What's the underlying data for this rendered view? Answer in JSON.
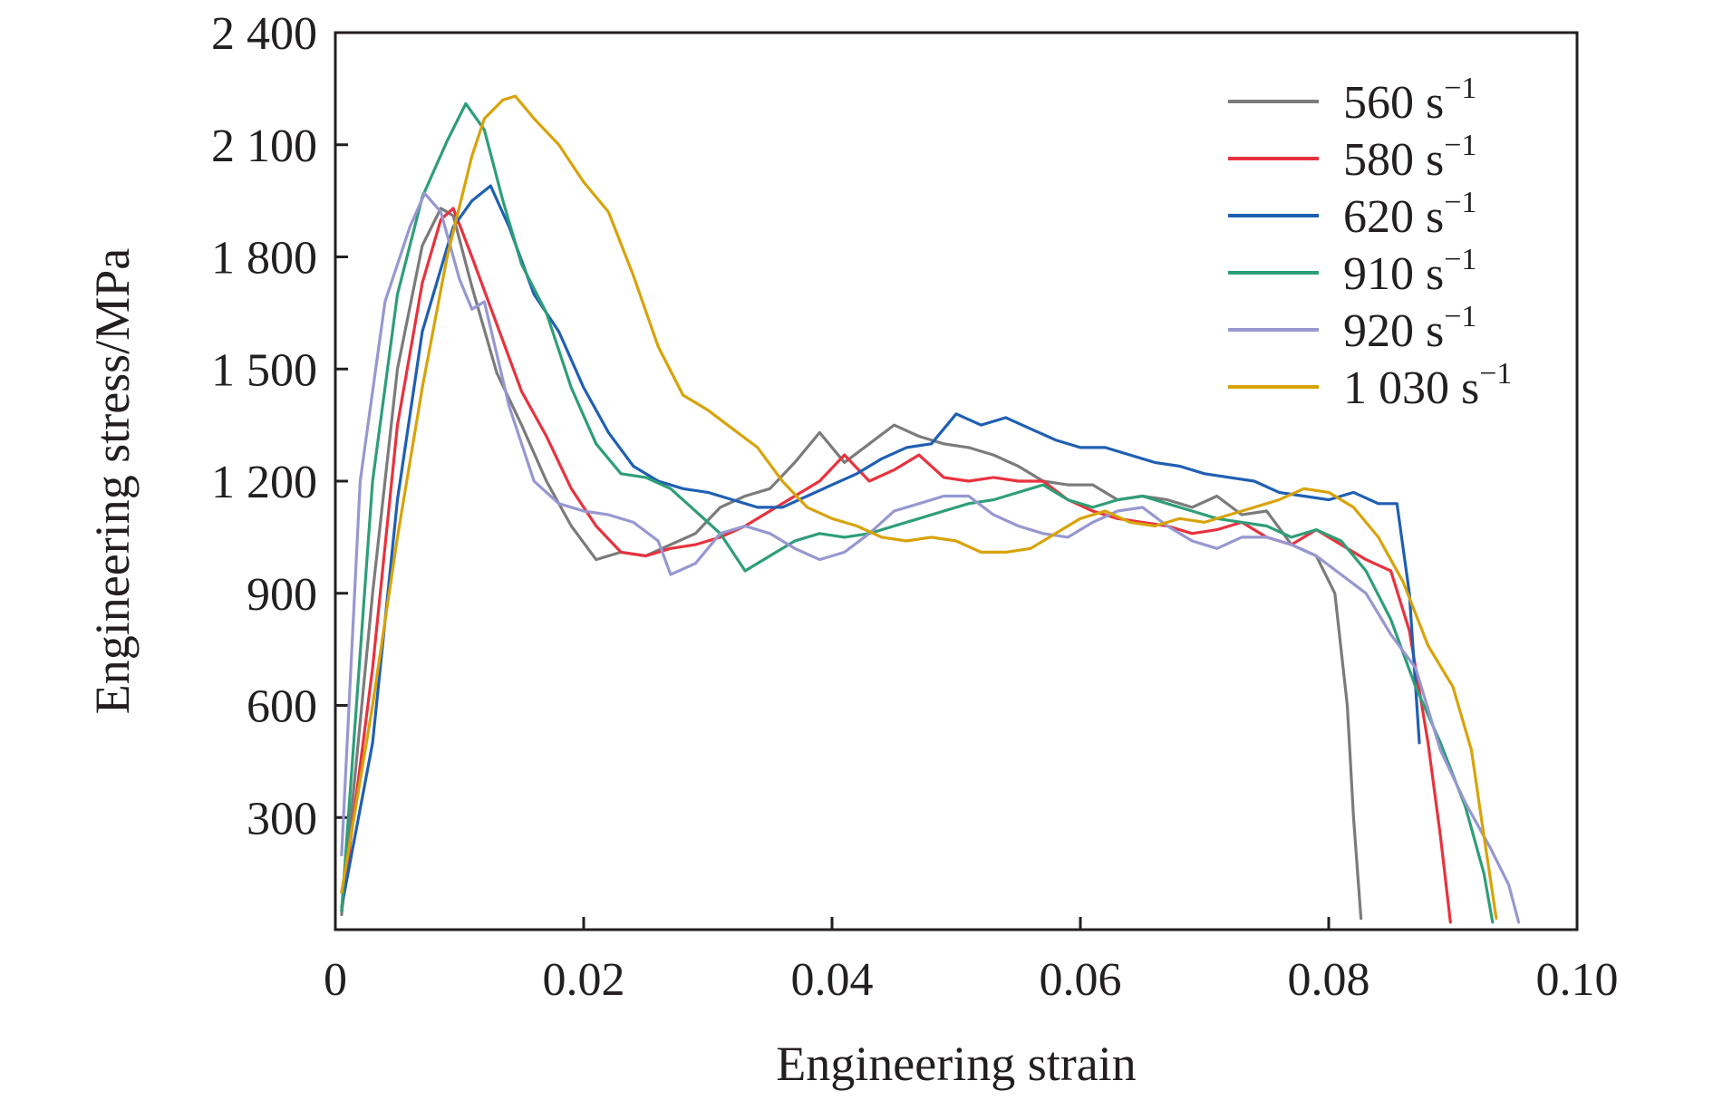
{
  "chart_data": {
    "type": "line",
    "xlabel": "Engineering strain",
    "ylabel": "Engineering stress/MPa",
    "xlim": [
      0,
      0.1
    ],
    "ylim": [
      0,
      2400
    ],
    "x_ticks": [
      {
        "value": 0,
        "label": "0"
      },
      {
        "value": 0.02,
        "label": "0.02"
      },
      {
        "value": 0.04,
        "label": "0.04"
      },
      {
        "value": 0.06,
        "label": "0.06"
      },
      {
        "value": 0.08,
        "label": "0.08"
      },
      {
        "value": 0.1,
        "label": "0.10"
      }
    ],
    "y_ticks": [
      {
        "value": 300,
        "label": "300"
      },
      {
        "value": 600,
        "label": "600"
      },
      {
        "value": 900,
        "label": "900"
      },
      {
        "value": 1200,
        "label": "1 200"
      },
      {
        "value": 1500,
        "label": "1 500"
      },
      {
        "value": 1800,
        "label": "1 800"
      },
      {
        "value": 2100,
        "label": "2 100"
      },
      {
        "value": 2400,
        "label": "2 400"
      }
    ],
    "grid": false,
    "legend_position": "top-right",
    "series": [
      {
        "name": "560 s",
        "superscript": "−1",
        "color": "#7b7b7b",
        "points": [
          [
            0.0005,
            40
          ],
          [
            0.003,
            900
          ],
          [
            0.005,
            1500
          ],
          [
            0.007,
            1830
          ],
          [
            0.0085,
            1930
          ],
          [
            0.0095,
            1910
          ],
          [
            0.011,
            1720
          ],
          [
            0.013,
            1490
          ],
          [
            0.015,
            1350
          ],
          [
            0.017,
            1200
          ],
          [
            0.019,
            1080
          ],
          [
            0.021,
            990
          ],
          [
            0.023,
            1010
          ],
          [
            0.025,
            1000
          ],
          [
            0.027,
            1030
          ],
          [
            0.029,
            1060
          ],
          [
            0.031,
            1130
          ],
          [
            0.033,
            1160
          ],
          [
            0.035,
            1180
          ],
          [
            0.037,
            1250
          ],
          [
            0.039,
            1330
          ],
          [
            0.041,
            1250
          ],
          [
            0.043,
            1300
          ],
          [
            0.045,
            1350
          ],
          [
            0.047,
            1320
          ],
          [
            0.049,
            1300
          ],
          [
            0.051,
            1290
          ],
          [
            0.053,
            1270
          ],
          [
            0.055,
            1240
          ],
          [
            0.057,
            1200
          ],
          [
            0.059,
            1190
          ],
          [
            0.061,
            1190
          ],
          [
            0.063,
            1150
          ],
          [
            0.065,
            1160
          ],
          [
            0.067,
            1150
          ],
          [
            0.069,
            1130
          ],
          [
            0.071,
            1160
          ],
          [
            0.073,
            1110
          ],
          [
            0.075,
            1120
          ],
          [
            0.077,
            1030
          ],
          [
            0.079,
            1000
          ],
          [
            0.0805,
            900
          ],
          [
            0.0815,
            600
          ],
          [
            0.082,
            300
          ],
          [
            0.0826,
            30
          ]
        ]
      },
      {
        "name": "580 s",
        "superscript": "−1",
        "color": "#e8323e",
        "points": [
          [
            0.0005,
            50
          ],
          [
            0.003,
            700
          ],
          [
            0.005,
            1350
          ],
          [
            0.007,
            1730
          ],
          [
            0.0085,
            1900
          ],
          [
            0.0095,
            1930
          ],
          [
            0.011,
            1800
          ],
          [
            0.013,
            1620
          ],
          [
            0.015,
            1440
          ],
          [
            0.017,
            1320
          ],
          [
            0.019,
            1180
          ],
          [
            0.021,
            1080
          ],
          [
            0.023,
            1010
          ],
          [
            0.025,
            1000
          ],
          [
            0.027,
            1020
          ],
          [
            0.029,
            1030
          ],
          [
            0.031,
            1050
          ],
          [
            0.033,
            1080
          ],
          [
            0.035,
            1120
          ],
          [
            0.037,
            1160
          ],
          [
            0.039,
            1200
          ],
          [
            0.041,
            1270
          ],
          [
            0.043,
            1200
          ],
          [
            0.045,
            1230
          ],
          [
            0.047,
            1270
          ],
          [
            0.049,
            1210
          ],
          [
            0.051,
            1200
          ],
          [
            0.053,
            1210
          ],
          [
            0.055,
            1200
          ],
          [
            0.057,
            1200
          ],
          [
            0.059,
            1150
          ],
          [
            0.061,
            1120
          ],
          [
            0.063,
            1100
          ],
          [
            0.065,
            1090
          ],
          [
            0.067,
            1080
          ],
          [
            0.069,
            1060
          ],
          [
            0.071,
            1070
          ],
          [
            0.073,
            1090
          ],
          [
            0.075,
            1050
          ],
          [
            0.077,
            1030
          ],
          [
            0.079,
            1070
          ],
          [
            0.081,
            1030
          ],
          [
            0.083,
            990
          ],
          [
            0.085,
            960
          ],
          [
            0.0865,
            800
          ],
          [
            0.088,
            500
          ],
          [
            0.089,
            250
          ],
          [
            0.0898,
            20
          ]
        ]
      },
      {
        "name": "620 s",
        "superscript": "−1",
        "color": "#1f5fb3",
        "points": [
          [
            0.0005,
            60
          ],
          [
            0.003,
            500
          ],
          [
            0.005,
            1150
          ],
          [
            0.007,
            1600
          ],
          [
            0.0095,
            1880
          ],
          [
            0.011,
            1950
          ],
          [
            0.0125,
            1990
          ],
          [
            0.014,
            1880
          ],
          [
            0.016,
            1700
          ],
          [
            0.018,
            1600
          ],
          [
            0.02,
            1450
          ],
          [
            0.022,
            1330
          ],
          [
            0.024,
            1240
          ],
          [
            0.026,
            1200
          ],
          [
            0.028,
            1180
          ],
          [
            0.03,
            1170
          ],
          [
            0.032,
            1150
          ],
          [
            0.034,
            1130
          ],
          [
            0.036,
            1130
          ],
          [
            0.038,
            1160
          ],
          [
            0.04,
            1190
          ],
          [
            0.042,
            1220
          ],
          [
            0.044,
            1260
          ],
          [
            0.046,
            1290
          ],
          [
            0.048,
            1300
          ],
          [
            0.05,
            1380
          ],
          [
            0.052,
            1350
          ],
          [
            0.054,
            1370
          ],
          [
            0.056,
            1340
          ],
          [
            0.058,
            1310
          ],
          [
            0.06,
            1290
          ],
          [
            0.062,
            1290
          ],
          [
            0.064,
            1270
          ],
          [
            0.066,
            1250
          ],
          [
            0.068,
            1240
          ],
          [
            0.07,
            1220
          ],
          [
            0.072,
            1210
          ],
          [
            0.074,
            1200
          ],
          [
            0.076,
            1170
          ],
          [
            0.078,
            1160
          ],
          [
            0.08,
            1150
          ],
          [
            0.082,
            1170
          ],
          [
            0.084,
            1140
          ],
          [
            0.0855,
            1140
          ],
          [
            0.0865,
            900
          ],
          [
            0.0873,
            500
          ]
        ]
      },
      {
        "name": "910 s",
        "superscript": "−1",
        "color": "#2e9e78",
        "points": [
          [
            0.0005,
            50
          ],
          [
            0.003,
            1200
          ],
          [
            0.005,
            1700
          ],
          [
            0.007,
            1960
          ],
          [
            0.009,
            2110
          ],
          [
            0.0105,
            2210
          ],
          [
            0.012,
            2140
          ],
          [
            0.0135,
            1950
          ],
          [
            0.015,
            1780
          ],
          [
            0.017,
            1650
          ],
          [
            0.019,
            1450
          ],
          [
            0.021,
            1300
          ],
          [
            0.023,
            1220
          ],
          [
            0.025,
            1210
          ],
          [
            0.027,
            1180
          ],
          [
            0.029,
            1120
          ],
          [
            0.031,
            1060
          ],
          [
            0.033,
            960
          ],
          [
            0.035,
            1000
          ],
          [
            0.037,
            1040
          ],
          [
            0.039,
            1060
          ],
          [
            0.041,
            1050
          ],
          [
            0.043,
            1060
          ],
          [
            0.045,
            1080
          ],
          [
            0.047,
            1100
          ],
          [
            0.049,
            1120
          ],
          [
            0.051,
            1140
          ],
          [
            0.053,
            1150
          ],
          [
            0.055,
            1170
          ],
          [
            0.057,
            1190
          ],
          [
            0.059,
            1150
          ],
          [
            0.061,
            1130
          ],
          [
            0.063,
            1150
          ],
          [
            0.065,
            1160
          ],
          [
            0.067,
            1140
          ],
          [
            0.069,
            1120
          ],
          [
            0.071,
            1100
          ],
          [
            0.073,
            1090
          ],
          [
            0.075,
            1080
          ],
          [
            0.077,
            1050
          ],
          [
            0.079,
            1070
          ],
          [
            0.081,
            1040
          ],
          [
            0.083,
            960
          ],
          [
            0.085,
            830
          ],
          [
            0.087,
            650
          ],
          [
            0.089,
            500
          ],
          [
            0.091,
            330
          ],
          [
            0.0925,
            150
          ],
          [
            0.0932,
            20
          ]
        ]
      },
      {
        "name": "920 s",
        "superscript": "−1",
        "color": "#9797d1",
        "points": [
          [
            0.0005,
            200
          ],
          [
            0.002,
            1200
          ],
          [
            0.004,
            1680
          ],
          [
            0.006,
            1880
          ],
          [
            0.0072,
            1970
          ],
          [
            0.0085,
            1920
          ],
          [
            0.01,
            1740
          ],
          [
            0.011,
            1660
          ],
          [
            0.012,
            1680
          ],
          [
            0.014,
            1400
          ],
          [
            0.016,
            1200
          ],
          [
            0.018,
            1140
          ],
          [
            0.02,
            1120
          ],
          [
            0.022,
            1110
          ],
          [
            0.024,
            1090
          ],
          [
            0.026,
            1040
          ],
          [
            0.027,
            950
          ],
          [
            0.029,
            980
          ],
          [
            0.031,
            1060
          ],
          [
            0.033,
            1080
          ],
          [
            0.035,
            1060
          ],
          [
            0.037,
            1020
          ],
          [
            0.039,
            990
          ],
          [
            0.041,
            1010
          ],
          [
            0.043,
            1060
          ],
          [
            0.045,
            1120
          ],
          [
            0.047,
            1140
          ],
          [
            0.049,
            1160
          ],
          [
            0.051,
            1160
          ],
          [
            0.053,
            1110
          ],
          [
            0.055,
            1080
          ],
          [
            0.057,
            1060
          ],
          [
            0.059,
            1050
          ],
          [
            0.061,
            1090
          ],
          [
            0.063,
            1120
          ],
          [
            0.065,
            1130
          ],
          [
            0.067,
            1080
          ],
          [
            0.069,
            1040
          ],
          [
            0.071,
            1020
          ],
          [
            0.073,
            1050
          ],
          [
            0.075,
            1050
          ],
          [
            0.077,
            1030
          ],
          [
            0.079,
            1000
          ],
          [
            0.081,
            950
          ],
          [
            0.083,
            900
          ],
          [
            0.085,
            790
          ],
          [
            0.087,
            700
          ],
          [
            0.089,
            480
          ],
          [
            0.091,
            340
          ],
          [
            0.093,
            220
          ],
          [
            0.0945,
            120
          ],
          [
            0.0953,
            20
          ]
        ]
      },
      {
        "name": "1 030 s",
        "superscript": "−1",
        "color": "#d8a30a",
        "points": [
          [
            0.0005,
            100
          ],
          [
            0.003,
            600
          ],
          [
            0.005,
            1050
          ],
          [
            0.007,
            1450
          ],
          [
            0.009,
            1800
          ],
          [
            0.011,
            2070
          ],
          [
            0.012,
            2170
          ],
          [
            0.0135,
            2220
          ],
          [
            0.0145,
            2230
          ],
          [
            0.016,
            2170
          ],
          [
            0.018,
            2100
          ],
          [
            0.02,
            2000
          ],
          [
            0.022,
            1920
          ],
          [
            0.024,
            1750
          ],
          [
            0.026,
            1560
          ],
          [
            0.028,
            1430
          ],
          [
            0.03,
            1390
          ],
          [
            0.032,
            1340
          ],
          [
            0.034,
            1290
          ],
          [
            0.036,
            1200
          ],
          [
            0.038,
            1130
          ],
          [
            0.04,
            1100
          ],
          [
            0.042,
            1080
          ],
          [
            0.044,
            1050
          ],
          [
            0.046,
            1040
          ],
          [
            0.048,
            1050
          ],
          [
            0.05,
            1040
          ],
          [
            0.052,
            1010
          ],
          [
            0.054,
            1010
          ],
          [
            0.056,
            1020
          ],
          [
            0.058,
            1060
          ],
          [
            0.06,
            1100
          ],
          [
            0.062,
            1120
          ],
          [
            0.064,
            1090
          ],
          [
            0.066,
            1080
          ],
          [
            0.068,
            1100
          ],
          [
            0.07,
            1090
          ],
          [
            0.072,
            1110
          ],
          [
            0.074,
            1130
          ],
          [
            0.076,
            1150
          ],
          [
            0.078,
            1180
          ],
          [
            0.08,
            1170
          ],
          [
            0.082,
            1130
          ],
          [
            0.084,
            1050
          ],
          [
            0.086,
            930
          ],
          [
            0.088,
            760
          ],
          [
            0.09,
            650
          ],
          [
            0.0915,
            480
          ],
          [
            0.0925,
            250
          ],
          [
            0.0935,
            30
          ]
        ]
      }
    ]
  }
}
